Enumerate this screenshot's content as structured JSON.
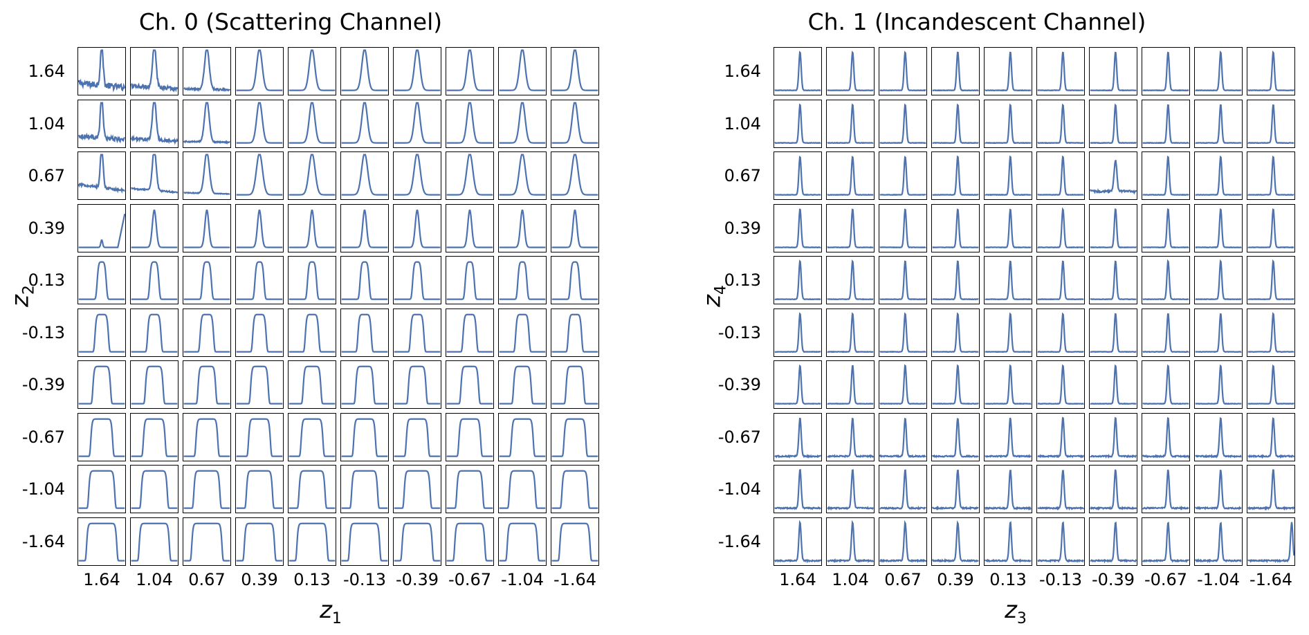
{
  "chart_data": [
    {
      "type": "line",
      "title": "Ch. 0 (Scattering Channel)",
      "xlabel_var": "z",
      "xlabel_sub": "1",
      "ylabel_var": "z",
      "ylabel_sub": "2",
      "col_labels": [
        "1.64",
        "1.04",
        "0.67",
        "0.39",
        "0.13",
        "-0.13",
        "-0.39",
        "-0.67",
        "-1.04",
        "-1.64"
      ],
      "row_labels": [
        "1.64",
        "1.04",
        "0.67",
        "0.39",
        "0.13",
        "-0.13",
        "-0.39",
        "-0.67",
        "-1.04",
        "-1.64"
      ],
      "grid": false,
      "color": "#4c72b0"
    },
    {
      "type": "line",
      "title": "Ch. 1 (Incandescent Channel)",
      "xlabel_var": "z",
      "xlabel_sub": "3",
      "ylabel_var": "z",
      "ylabel_sub": "4",
      "col_labels": [
        "1.64",
        "1.04",
        "0.67",
        "0.39",
        "0.13",
        "-0.13",
        "-0.39",
        "-0.67",
        "-1.04",
        "-1.64"
      ],
      "row_labels": [
        "1.64",
        "1.04",
        "0.67",
        "0.39",
        "0.13",
        "-0.13",
        "-0.39",
        "-0.67",
        "-1.04",
        "-1.64"
      ],
      "grid": false,
      "color": "#4c72b0"
    }
  ]
}
